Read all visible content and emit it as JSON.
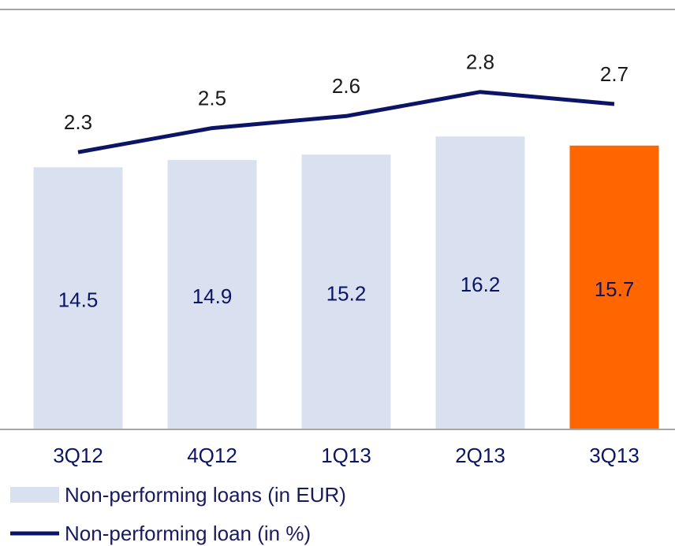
{
  "chart_data": {
    "type": "bar-line",
    "categories": [
      "3Q12",
      "4Q12",
      "1Q13",
      "2Q13",
      "3Q13"
    ],
    "series": [
      {
        "name": "Non-performing loans (in EUR)",
        "type": "bar",
        "color": "#d9e1f0",
        "colors": [
          "#d9e1f0",
          "#d9e1f0",
          "#d9e1f0",
          "#d9e1f0",
          "#ff6600"
        ],
        "values": [
          14.5,
          14.9,
          15.2,
          16.2,
          15.7
        ]
      },
      {
        "name": "Non-performing loan (in %)",
        "type": "line",
        "axis": "y2",
        "color": "#0c1466",
        "values": [
          2.3,
          2.5,
          2.6,
          2.8,
          2.7
        ]
      }
    ],
    "ylim": [
      0,
      18
    ],
    "y2lim": [
      0,
      2.7
    ]
  }
}
